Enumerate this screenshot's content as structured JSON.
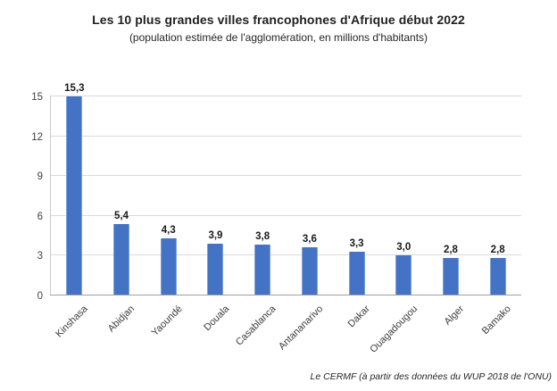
{
  "header": {
    "title": "Les 10 plus grandes villes francophones d'Afrique début 2022",
    "subtitle": "(population estimée de l'agglomération, en millions d'habitants)"
  },
  "footer": {
    "source": "Le CERMF (à partir des données du WUP 2018 de l'ONU)"
  },
  "chart_data": {
    "type": "bar",
    "title": "Les 10 plus grandes villes francophones d'Afrique début 2022",
    "subtitle": "(population estimée de l'agglomération, en millions d'habitants)",
    "categories": [
      "Kinshasa",
      "Abidjan",
      "Yaoundé",
      "Douala",
      "Casablanca",
      "Antananarivo",
      "Dakar",
      "Ouagadougou",
      "Alger",
      "Bamako"
    ],
    "values": [
      15.3,
      5.4,
      4.3,
      3.9,
      3.8,
      3.6,
      3.3,
      3.0,
      2.8,
      2.8
    ],
    "value_labels": [
      "15,3",
      "5,4",
      "4,3",
      "3,9",
      "3,8",
      "3,6",
      "3,3",
      "3,0",
      "2,8",
      "2,8"
    ],
    "xlabel": "",
    "ylabel": "",
    "ylim": [
      0,
      16
    ],
    "yticks": [
      0,
      3,
      6,
      9,
      12,
      15
    ],
    "grid": true,
    "legend": null,
    "bar_color": "#4472c4",
    "gridline_color": "#dadada",
    "source": "Le CERMF (à partir des données du WUP 2018 de l'ONU)"
  }
}
